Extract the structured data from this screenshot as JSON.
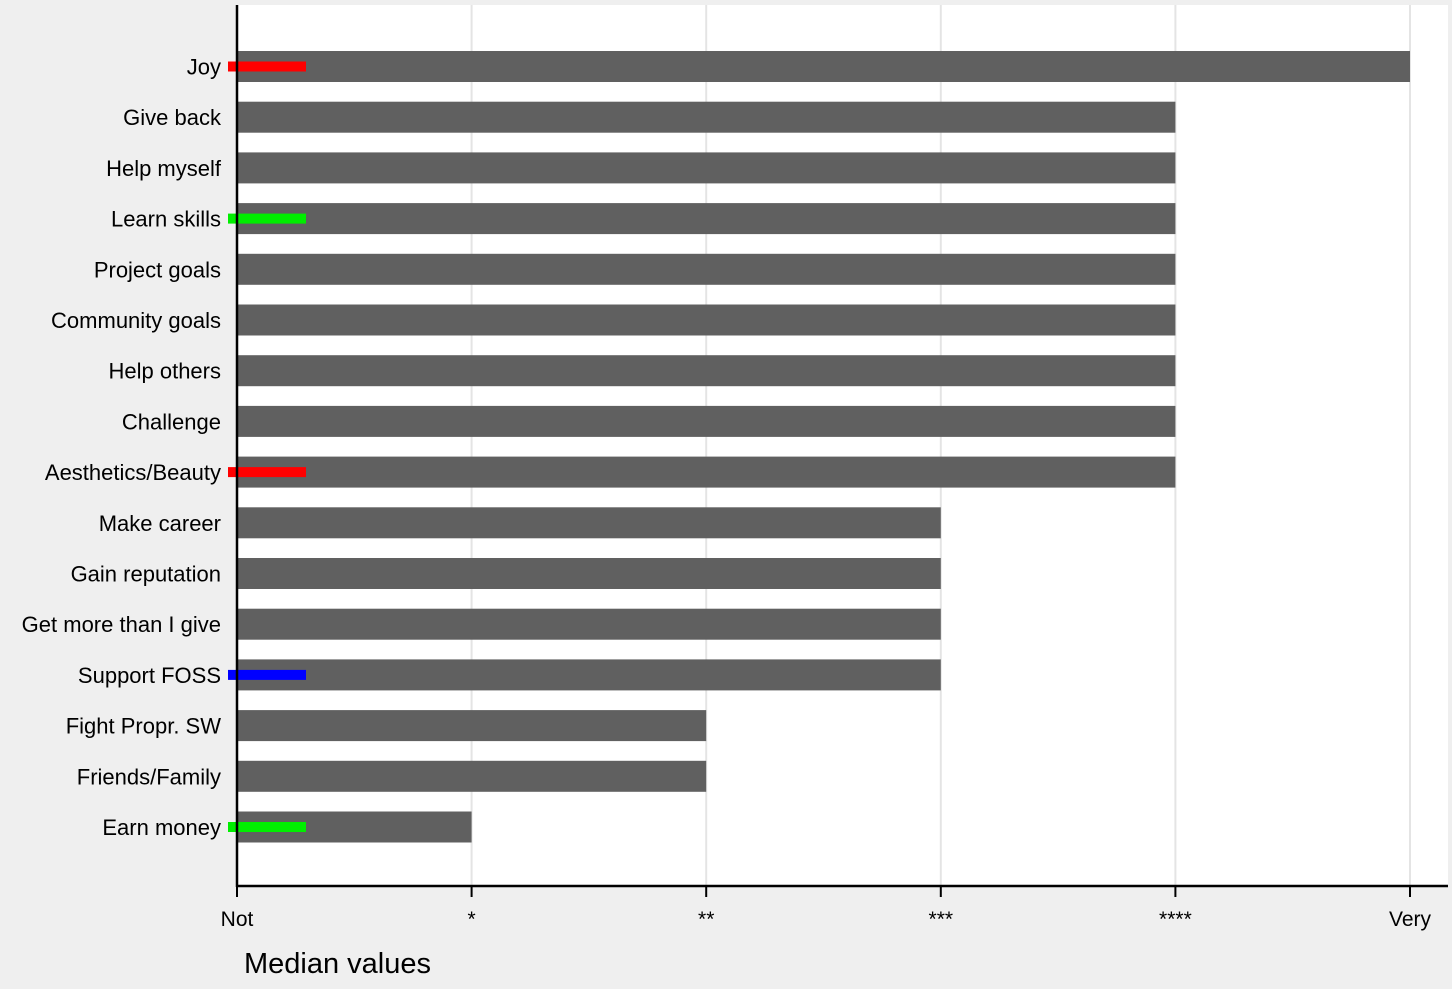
{
  "chart_data": {
    "type": "bar",
    "orientation": "horizontal",
    "xlabel": "Median values",
    "ylabel": "",
    "xlim": [
      0,
      5
    ],
    "xticks": [
      {
        "value": 0,
        "label": "Not"
      },
      {
        "value": 1,
        "label": "*"
      },
      {
        "value": 2,
        "label": "**"
      },
      {
        "value": 3,
        "label": "***"
      },
      {
        "value": 4,
        "label": "****"
      },
      {
        "value": 5,
        "label": "Very"
      }
    ],
    "categories": [
      "Joy",
      "Give back",
      "Help myself",
      "Learn skills",
      "Project goals",
      "Community goals",
      "Help others",
      "Challenge",
      "Aesthetics/Beauty",
      "Make career",
      "Gain reputation",
      "Get more than I give",
      "Support FOSS",
      "Fight Propr. SW",
      "Friends/Family",
      "Earn money"
    ],
    "values": [
      5,
      4,
      4,
      4,
      4,
      4,
      4,
      4,
      4,
      3,
      3,
      3,
      3,
      2,
      2,
      1
    ],
    "markers": [
      {
        "category": "Joy",
        "color": "#ff0000"
      },
      {
        "category": "Learn skills",
        "color": "#00ee00"
      },
      {
        "category": "Aesthetics/Beauty",
        "color": "#ff0000"
      },
      {
        "category": "Support FOSS",
        "color": "#0000ff"
      },
      {
        "category": "Earn money",
        "color": "#00ee00"
      }
    ],
    "grid": true,
    "legend": "none",
    "colors": {
      "bar": "#606060",
      "grid": "#e4e4e4",
      "axis": "#000000",
      "plot_background": "#ffffff",
      "page_background": "#efefef"
    }
  }
}
